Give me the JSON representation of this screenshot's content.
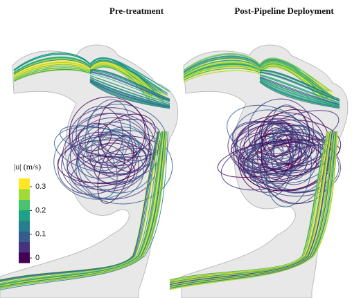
{
  "panels": [
    {
      "title": "Pre-treatment"
    },
    {
      "title": "Post-Pipeline Deployment"
    }
  ],
  "colorbar": {
    "label": "|u| (m/s)",
    "lim": [
      -0.02,
      0.335
    ],
    "ticks": [
      0,
      0.1,
      0.2,
      0.3
    ]
  }
}
